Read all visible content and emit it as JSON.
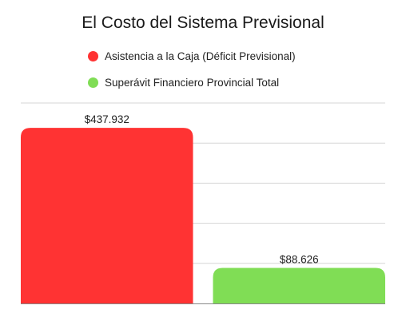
{
  "chart_data": {
    "type": "bar",
    "title": "El Costo del Sistema Previsional",
    "series": [
      {
        "name": "Asistencia a la Caja (Déficit Previsional)",
        "value": 437932,
        "label": "$437.932",
        "color": "#ff3333"
      },
      {
        "name": "Superávit Financiero Provincial Total",
        "value": 88626,
        "label": "$88.626",
        "color": "#80dd55"
      }
    ],
    "ylim": [
      0,
      500000
    ],
    "grid": true,
    "legend_position": "top",
    "colors": {
      "gridline": "#d6d6d6",
      "axis": "#888888"
    }
  }
}
